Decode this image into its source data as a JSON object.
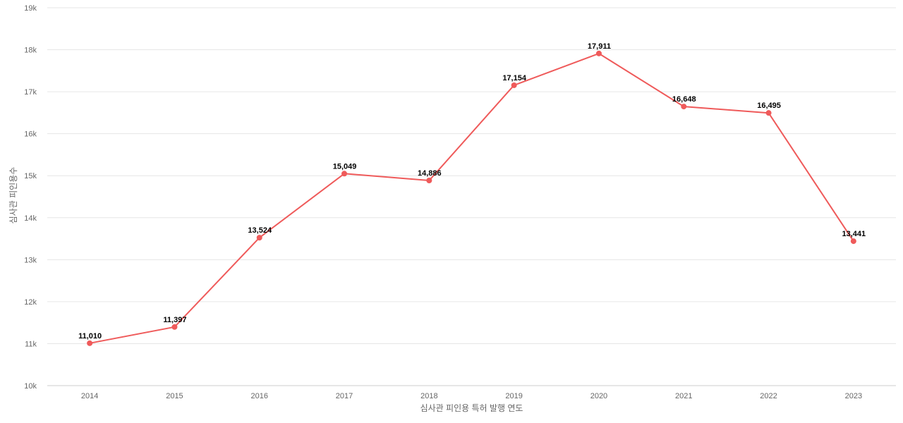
{
  "chart_data": {
    "type": "line",
    "title": "",
    "xlabel": "심사관 피인용 특허 발행 연도",
    "ylabel": "심사관 피인용수",
    "categories": [
      "2014",
      "2015",
      "2016",
      "2017",
      "2018",
      "2019",
      "2020",
      "2021",
      "2022",
      "2023"
    ],
    "series": [
      {
        "values": [
          11010,
          11397,
          13524,
          15049,
          14886,
          17154,
          17911,
          16648,
          16495,
          13441
        ],
        "data_labels": [
          "11,010",
          "11,397",
          "13,524",
          "15,049",
          "14,886",
          "17,154",
          "17,911",
          "16,648",
          "16,495",
          "13,441"
        ],
        "color": "#ef5a5a"
      }
    ],
    "ylim": [
      10000,
      19000
    ],
    "yticks": [
      10000,
      11000,
      12000,
      13000,
      14000,
      15000,
      16000,
      17000,
      18000,
      19000
    ],
    "ytick_labels": [
      "10k",
      "11k",
      "12k",
      "13k",
      "14k",
      "15k",
      "16k",
      "17k",
      "18k",
      "19k"
    ],
    "grid": true,
    "legend": "none"
  }
}
